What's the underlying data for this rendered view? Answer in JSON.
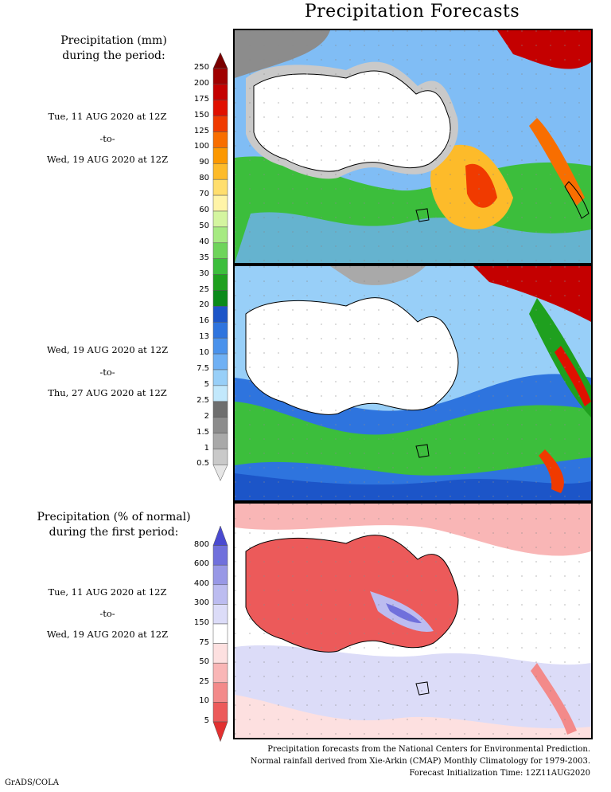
{
  "title": "Precipitation Forecasts",
  "panel1": {
    "heading_line1": "Precipitation (mm)",
    "heading_line2": "during the period:",
    "start": "Tue, 11 AUG 2020 at 12Z",
    "to": "-to-",
    "end": "Wed, 19 AUG 2020 at 12Z"
  },
  "panel2": {
    "start": "Wed, 19 AUG 2020 at 12Z",
    "to": "-to-",
    "end": "Thu, 27 AUG 2020 at 12Z"
  },
  "panel3": {
    "heading_line1": "Precipitation (% of normal)",
    "heading_line2": "during the first period:",
    "start": "Tue, 11 AUG 2020 at 12Z",
    "to": "-to-",
    "end": "Wed, 19 AUG 2020 at 12Z"
  },
  "mm_colorbar": {
    "labels": [
      "250",
      "200",
      "175",
      "150",
      "125",
      "100",
      "90",
      "80",
      "70",
      "60",
      "50",
      "40",
      "35",
      "30",
      "25",
      "20",
      "16",
      "13",
      "10",
      "7.5",
      "5",
      "2.5",
      "2",
      "1.5",
      "1",
      "0.5"
    ],
    "colors": [
      "#7a0000",
      "#a00000",
      "#c40000",
      "#e01000",
      "#f03a00",
      "#f86e00",
      "#fc9800",
      "#fdbb2a",
      "#ffde6e",
      "#fff4a8",
      "#d4f5a0",
      "#a6ea82",
      "#6ed45a",
      "#3cbe3c",
      "#1fa01f",
      "#0a8a1a",
      "#1c55c8",
      "#2e74de",
      "#4a92ec",
      "#6fb0f4",
      "#98cff8",
      "#c2e8fc",
      "#6e6e6e",
      "#8c8c8c",
      "#a9a9a9",
      "#c9c9c9",
      "#e6e6e6"
    ]
  },
  "pct_colorbar": {
    "labels": [
      "800",
      "600",
      "400",
      "300",
      "150",
      "75",
      "50",
      "25",
      "10",
      "5"
    ],
    "colors": [
      "#4a4ad0",
      "#7070dc",
      "#9898e6",
      "#bcbcf0",
      "#dcdcf8",
      "#ffffff",
      "#fde0e0",
      "#f9b6b6",
      "#f38a8a",
      "#ec5a5a",
      "#e23030"
    ]
  },
  "footer": {
    "line1": "Precipitation forecasts from the National Centers for Environmental Prediction.",
    "line2": "Normal rainfall derived from Xie-Arkin (CMAP) Monthly Climatology for 1979-2003.",
    "line3": "Forecast Initialization Time: 12Z11AUG2020"
  },
  "credit": "GrADS/COLA"
}
